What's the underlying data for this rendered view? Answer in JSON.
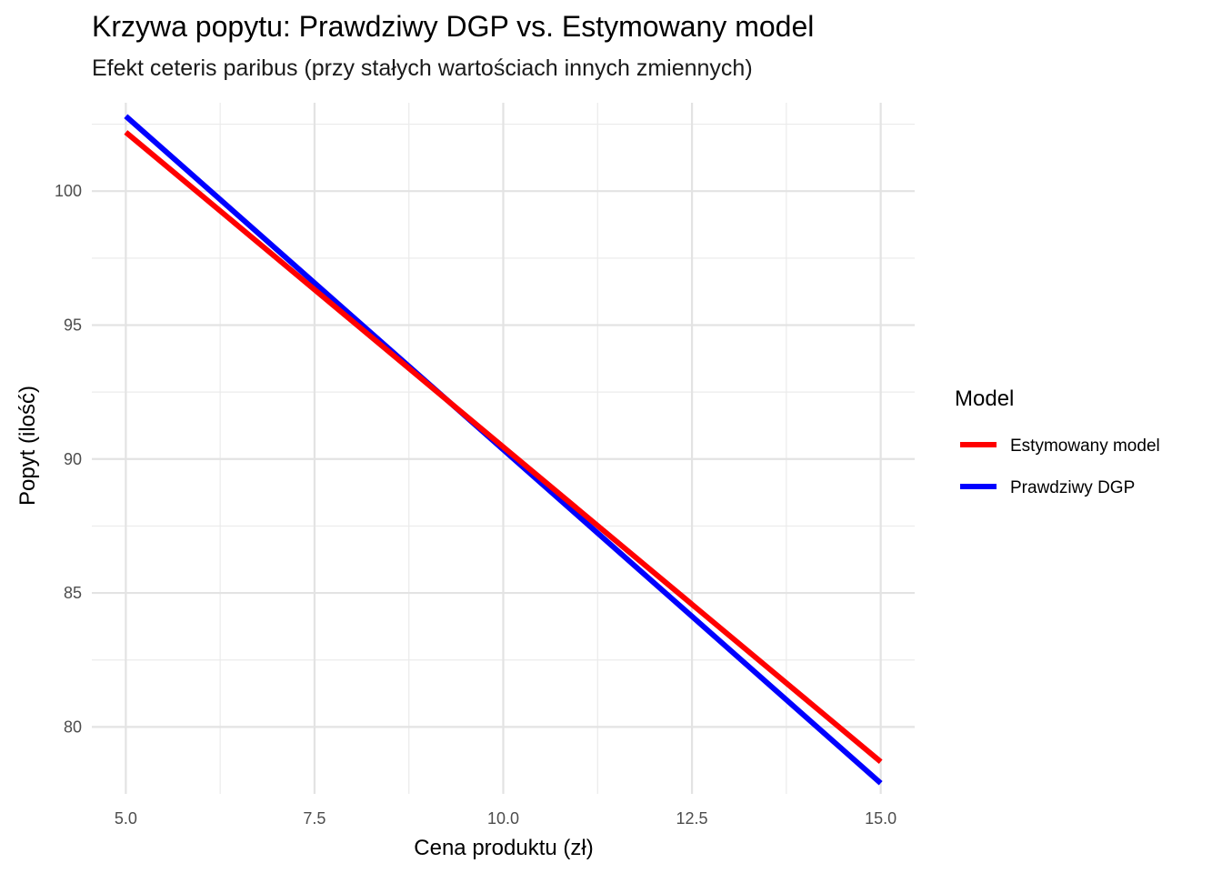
{
  "chart_data": {
    "type": "line",
    "title": "Krzywa popytu: Prawdziwy DGP vs. Estymowany model",
    "subtitle": "Efekt ceteris paribus (przy stałych wartościach innych zmiennych)",
    "xlabel": "Cena produktu (zł)",
    "ylabel": "Popyt (ilość)",
    "xlim": [
      4.55,
      15.45
    ],
    "ylim": [
      77.5,
      103.3
    ],
    "x_ticks": [
      5.0,
      7.5,
      10.0,
      12.5,
      15.0
    ],
    "x_tick_labels": [
      "5.0",
      "7.5",
      "10.0",
      "12.5",
      "15.0"
    ],
    "y_ticks": [
      80,
      85,
      90,
      95,
      100
    ],
    "y_tick_labels": [
      "80",
      "85",
      "90",
      "95",
      "100"
    ],
    "grid": true,
    "legend": {
      "title": "Model",
      "placement": "right"
    },
    "series": [
      {
        "name": "Estymowany model",
        "color": "#ff0000",
        "x": [
          5.0,
          15.0
        ],
        "y": [
          102.2,
          78.7
        ]
      },
      {
        "name": "Prawdziwy DGP",
        "color": "#0000ff",
        "x": [
          5.0,
          15.0
        ],
        "y": [
          102.8,
          77.9
        ]
      }
    ]
  }
}
